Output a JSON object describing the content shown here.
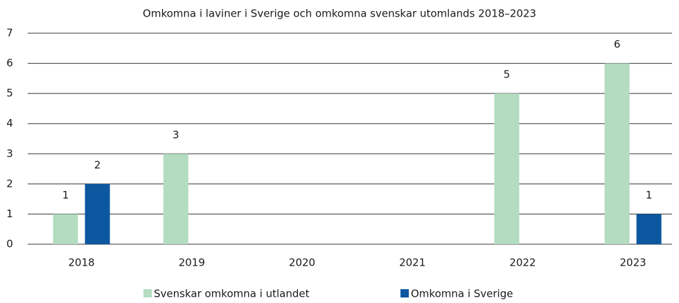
{
  "chart_data": {
    "type": "bar",
    "title": "Omkomna i laviner i Sverige och omkomna svenskar utomlands 2018–2023",
    "categories": [
      "2018",
      "2019",
      "2020",
      "2021",
      "2022",
      "2023"
    ],
    "series": [
      {
        "name": "Svenskar omkomna i utlandet",
        "color": "#b3dcc0",
        "values": [
          1,
          3,
          null,
          null,
          5,
          6
        ]
      },
      {
        "name": "Omkomna i Sverige",
        "color": "#0b57a0",
        "values": [
          2,
          null,
          null,
          null,
          null,
          1
        ]
      }
    ],
    "ylim": [
      0,
      7
    ],
    "yticks": [
      0,
      1,
      2,
      3,
      4,
      5,
      6,
      7
    ],
    "grid": true,
    "legend": "bottom"
  }
}
